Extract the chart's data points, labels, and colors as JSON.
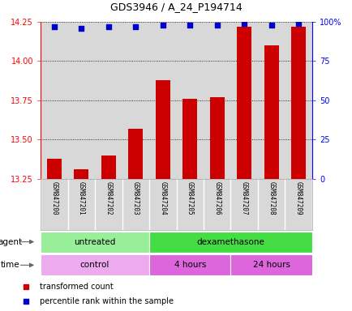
{
  "title": "GDS3946 / A_24_P194714",
  "samples": [
    "GSM847200",
    "GSM847201",
    "GSM847202",
    "GSM847203",
    "GSM847204",
    "GSM847205",
    "GSM847206",
    "GSM847207",
    "GSM847208",
    "GSM847209"
  ],
  "transformed_counts": [
    13.38,
    13.31,
    13.4,
    13.57,
    13.88,
    13.76,
    13.77,
    14.22,
    14.1,
    14.22
  ],
  "percentile_ranks": [
    97,
    96,
    97,
    97,
    98,
    98,
    98,
    99,
    98,
    99
  ],
  "ylim_left": [
    13.25,
    14.25
  ],
  "ylim_right": [
    0,
    100
  ],
  "yticks_left": [
    13.25,
    13.5,
    13.75,
    14.0,
    14.25
  ],
  "yticks_right": [
    0,
    25,
    50,
    75,
    100
  ],
  "bar_color": "#cc0000",
  "dot_color": "#0000cc",
  "bar_bottom": 13.25,
  "agent_groups": [
    {
      "label": "untreated",
      "start": 0,
      "end": 4,
      "color": "#99ee99"
    },
    {
      "label": "dexamethasone",
      "start": 4,
      "end": 10,
      "color": "#44dd44"
    }
  ],
  "time_groups": [
    {
      "label": "control",
      "start": 0,
      "end": 4,
      "color": "#eeaaee"
    },
    {
      "label": "4 hours",
      "start": 4,
      "end": 7,
      "color": "#dd66dd"
    },
    {
      "label": "24 hours",
      "start": 7,
      "end": 10,
      "color": "#dd66dd"
    }
  ],
  "legend_items": [
    {
      "label": "transformed count",
      "color": "#cc0000"
    },
    {
      "label": "percentile rank within the sample",
      "color": "#0000cc"
    }
  ],
  "plot_bg_color": "#d8d8d8",
  "xlabel_bg_color": "#d8d8d8"
}
